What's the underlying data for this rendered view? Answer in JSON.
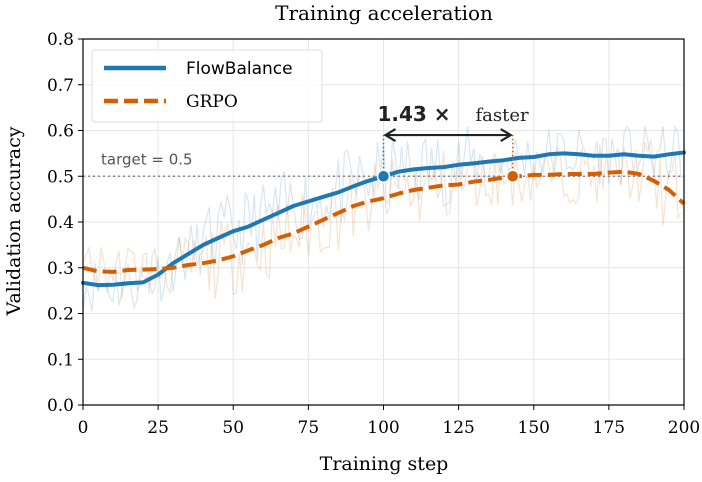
{
  "colors": {
    "flowbalance": "#1f77b4",
    "grpo": "#d55e00",
    "grid": "#e6e6e6",
    "target_line": "#888888",
    "axis": "#000000",
    "arrow": "#222222"
  },
  "chart_data": {
    "type": "line",
    "title": "Training acceleration",
    "xlabel": "Training step",
    "ylabel": "Validation accuracy",
    "xlim": [
      0,
      200
    ],
    "ylim": [
      0,
      0.8
    ],
    "xticks": [
      "0",
      "25",
      "50",
      "75",
      "100",
      "125",
      "150",
      "175",
      "200"
    ],
    "yticks": [
      "0.0",
      "0.1",
      "0.2",
      "0.3",
      "0.4",
      "0.5",
      "0.6",
      "0.7",
      "0.8"
    ],
    "grid": true,
    "legend_position": "top-left",
    "target": {
      "label": "target = 0.5",
      "value": 0.5
    },
    "annotation": {
      "speedup": "1.43 ×",
      "suffix": "faster",
      "from_step": 100,
      "to_step": 143
    },
    "series": [
      {
        "name": "FlowBalance",
        "style": "solid",
        "x": [
          0,
          5,
          10,
          15,
          20,
          25,
          30,
          35,
          40,
          45,
          50,
          55,
          60,
          65,
          70,
          75,
          80,
          85,
          90,
          95,
          100,
          105,
          110,
          115,
          120,
          125,
          130,
          135,
          140,
          145,
          150,
          155,
          160,
          165,
          170,
          175,
          180,
          185,
          190,
          195,
          200
        ],
        "values": [
          0.267,
          0.262,
          0.263,
          0.266,
          0.268,
          0.285,
          0.31,
          0.33,
          0.35,
          0.365,
          0.38,
          0.39,
          0.405,
          0.42,
          0.435,
          0.445,
          0.455,
          0.465,
          0.478,
          0.49,
          0.5,
          0.51,
          0.515,
          0.518,
          0.52,
          0.525,
          0.528,
          0.532,
          0.535,
          0.54,
          0.542,
          0.548,
          0.55,
          0.548,
          0.545,
          0.545,
          0.548,
          0.545,
          0.543,
          0.548,
          0.552
        ],
        "crossing": {
          "x": 100,
          "y": 0.5
        }
      },
      {
        "name": "GRPO",
        "style": "dashed",
        "x": [
          0,
          5,
          10,
          15,
          20,
          25,
          30,
          35,
          40,
          45,
          50,
          55,
          60,
          65,
          70,
          75,
          80,
          85,
          90,
          95,
          100,
          105,
          110,
          115,
          120,
          125,
          130,
          135,
          140,
          145,
          150,
          155,
          160,
          165,
          170,
          175,
          180,
          185,
          190,
          195,
          200
        ],
        "values": [
          0.3,
          0.292,
          0.291,
          0.295,
          0.296,
          0.297,
          0.3,
          0.306,
          0.31,
          0.316,
          0.325,
          0.338,
          0.35,
          0.365,
          0.375,
          0.39,
          0.405,
          0.42,
          0.435,
          0.445,
          0.452,
          0.462,
          0.47,
          0.475,
          0.48,
          0.482,
          0.488,
          0.492,
          0.497,
          0.5,
          0.503,
          0.503,
          0.505,
          0.505,
          0.505,
          0.508,
          0.51,
          0.505,
          0.49,
          0.47,
          0.44
        ],
        "crossing": {
          "x": 143,
          "y": 0.5
        }
      }
    ]
  }
}
